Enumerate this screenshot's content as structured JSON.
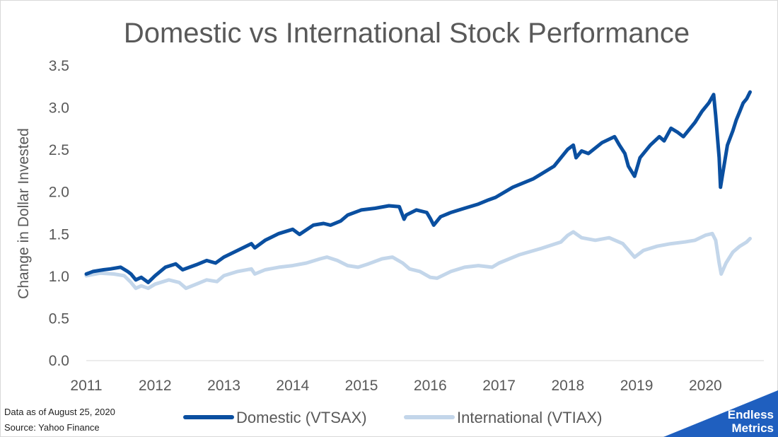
{
  "footnote": {
    "line1": "Data as of August 25, 2020",
    "line2": "Source: Yahoo Finance"
  },
  "logo": {
    "line1": "Endless",
    "line2": "Metrics",
    "color": "#1f5fbf"
  },
  "chart_data": {
    "type": "line",
    "title": "Domestic vs International Stock Performance",
    "xlabel": "",
    "ylabel": "Change in Dollar Invested",
    "xlim": [
      2011.0,
      2020.85
    ],
    "ylim": [
      0,
      3.5
    ],
    "x_ticks": [
      "2011",
      "2012",
      "2013",
      "2014",
      "2015",
      "2016",
      "2017",
      "2018",
      "2019",
      "2020"
    ],
    "y_ticks": [
      "0.0",
      "0.5",
      "1.0",
      "1.5",
      "2.0",
      "2.5",
      "3.0",
      "3.5"
    ],
    "grid": false,
    "legend_position": "bottom",
    "series": [
      {
        "name": "Domestic (VTSAX)",
        "color": "#0a4fa0",
        "x": [
          2011.0,
          2011.1,
          2011.25,
          2011.35,
          2011.5,
          2011.6,
          2011.65,
          2011.72,
          2011.8,
          2011.9,
          2012.0,
          2012.15,
          2012.3,
          2012.4,
          2012.6,
          2012.75,
          2012.88,
          2013.0,
          2013.2,
          2013.4,
          2013.45,
          2013.6,
          2013.8,
          2014.0,
          2014.1,
          2014.3,
          2014.45,
          2014.55,
          2014.7,
          2014.8,
          2015.0,
          2015.2,
          2015.4,
          2015.55,
          2015.62,
          2015.65,
          2015.8,
          2015.95,
          2016.0,
          2016.05,
          2016.15,
          2016.3,
          2016.5,
          2016.7,
          2016.85,
          2016.95,
          2017.2,
          2017.5,
          2017.8,
          2018.0,
          2018.08,
          2018.12,
          2018.2,
          2018.3,
          2018.5,
          2018.68,
          2018.75,
          2018.83,
          2018.88,
          2018.97,
          2019.05,
          2019.2,
          2019.33,
          2019.4,
          2019.5,
          2019.6,
          2019.68,
          2019.75,
          2019.85,
          2019.95,
          2020.05,
          2020.12,
          2020.15,
          2020.2,
          2020.22,
          2020.25,
          2020.32,
          2020.4,
          2020.45,
          2020.5,
          2020.55,
          2020.6,
          2020.65
        ],
        "values": [
          1.02,
          1.05,
          1.07,
          1.08,
          1.1,
          1.05,
          1.02,
          0.95,
          0.98,
          0.92,
          1.0,
          1.1,
          1.14,
          1.07,
          1.13,
          1.18,
          1.15,
          1.22,
          1.3,
          1.38,
          1.33,
          1.42,
          1.5,
          1.55,
          1.49,
          1.6,
          1.62,
          1.6,
          1.65,
          1.72,
          1.78,
          1.8,
          1.83,
          1.82,
          1.67,
          1.72,
          1.78,
          1.75,
          1.68,
          1.6,
          1.7,
          1.75,
          1.8,
          1.85,
          1.9,
          1.93,
          2.05,
          2.15,
          2.3,
          2.5,
          2.55,
          2.4,
          2.48,
          2.45,
          2.58,
          2.65,
          2.55,
          2.45,
          2.3,
          2.18,
          2.4,
          2.55,
          2.65,
          2.6,
          2.75,
          2.7,
          2.65,
          2.72,
          2.82,
          2.95,
          3.05,
          3.15,
          2.9,
          2.4,
          2.05,
          2.2,
          2.55,
          2.72,
          2.85,
          2.95,
          3.05,
          3.1,
          3.18
        ]
      },
      {
        "name": "International (VTIAX)",
        "color": "#c3d6ea",
        "x": [
          2011.0,
          2011.2,
          2011.4,
          2011.55,
          2011.65,
          2011.72,
          2011.8,
          2011.9,
          2012.0,
          2012.2,
          2012.35,
          2012.45,
          2012.6,
          2012.75,
          2012.9,
          2013.0,
          2013.2,
          2013.4,
          2013.45,
          2013.6,
          2013.8,
          2014.0,
          2014.2,
          2014.4,
          2014.5,
          2014.65,
          2014.8,
          2014.95,
          2015.1,
          2015.3,
          2015.45,
          2015.6,
          2015.7,
          2015.85,
          2016.0,
          2016.1,
          2016.3,
          2016.5,
          2016.7,
          2016.9,
          2017.0,
          2017.3,
          2017.6,
          2017.9,
          2018.0,
          2018.08,
          2018.2,
          2018.4,
          2018.6,
          2018.8,
          2018.97,
          2019.1,
          2019.3,
          2019.5,
          2019.7,
          2019.85,
          2020.0,
          2020.1,
          2020.15,
          2020.2,
          2020.23,
          2020.3,
          2020.4,
          2020.5,
          2020.6,
          2020.65
        ],
        "values": [
          1.0,
          1.03,
          1.02,
          1.0,
          0.92,
          0.85,
          0.88,
          0.85,
          0.9,
          0.95,
          0.92,
          0.85,
          0.9,
          0.95,
          0.93,
          1.0,
          1.05,
          1.08,
          1.02,
          1.07,
          1.1,
          1.12,
          1.15,
          1.2,
          1.22,
          1.18,
          1.12,
          1.1,
          1.14,
          1.2,
          1.22,
          1.15,
          1.08,
          1.05,
          0.98,
          0.97,
          1.05,
          1.1,
          1.12,
          1.1,
          1.15,
          1.25,
          1.32,
          1.4,
          1.48,
          1.52,
          1.45,
          1.42,
          1.45,
          1.38,
          1.22,
          1.3,
          1.35,
          1.38,
          1.4,
          1.42,
          1.48,
          1.5,
          1.42,
          1.15,
          1.02,
          1.15,
          1.28,
          1.35,
          1.4,
          1.44
        ]
      }
    ]
  }
}
